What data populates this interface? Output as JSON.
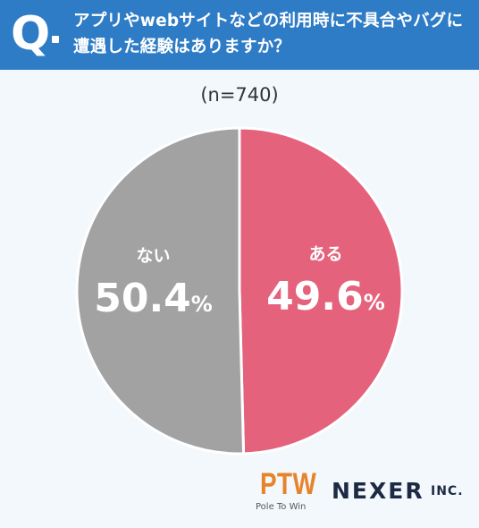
{
  "question": {
    "mark": "Q",
    "text": "アプリやwebサイトなどの利用時に不具合やバグに遭遇した経験はありますか？"
  },
  "sample_size": "(n=740)",
  "chart_data": {
    "type": "pie",
    "slices": [
      {
        "label": "ある",
        "value": 49.6,
        "display": "49.6",
        "unit": "%",
        "color": "#e5627c"
      },
      {
        "label": "ない",
        "value": 50.4,
        "display": "50.4",
        "unit": "%",
        "color": "#a2a2a2"
      }
    ]
  },
  "logos": {
    "ptw": "PTW",
    "ptw_sub": "Pole To Win",
    "nexer": "NEXER",
    "inc": "INC."
  }
}
